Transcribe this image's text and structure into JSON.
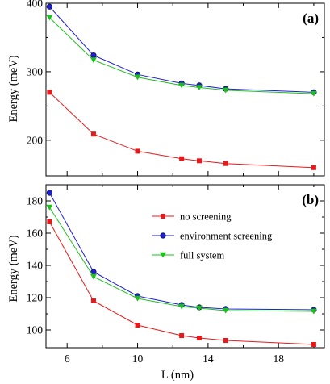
{
  "chart_data": {
    "type": "line",
    "xlabel": "L (nm)",
    "xlim": [
      4.8,
      20.6
    ],
    "xticks": [
      6,
      10,
      14,
      18
    ],
    "xminor": [
      8,
      12,
      16,
      20
    ],
    "x": [
      5,
      7.5,
      10,
      12.5,
      13.5,
      15,
      20
    ],
    "series_styles": [
      {
        "color": "#e41a1c",
        "marker": "square"
      },
      {
        "color": "#1f1fd0",
        "marker": "circle"
      },
      {
        "color": "#1ec01e",
        "marker": "triangle-down"
      }
    ],
    "panels": [
      {
        "label": "(a)",
        "ylabel": "Energy (meV)",
        "ylim": [
          148,
          400
        ],
        "yticks": [
          200,
          300,
          400
        ],
        "yminor": [
          250,
          350
        ],
        "show_legend": false,
        "series": [
          {
            "name": "no screening",
            "values": [
              270,
              209,
              184,
              173,
              170,
              166,
              160
            ]
          },
          {
            "name": "environment screening",
            "values": [
              395,
              324,
              296,
              283,
              280,
              275,
              270
            ]
          },
          {
            "name": "full system",
            "values": [
              379,
              317,
              292,
              280,
              277,
              273,
              268
            ]
          }
        ]
      },
      {
        "label": "(b)",
        "ylabel": "Energy (meV)",
        "ylim": [
          89,
          190
        ],
        "yticks": [
          100,
          120,
          140,
          160,
          180
        ],
        "yminor": [
          110,
          130,
          150,
          170
        ],
        "show_legend": true,
        "series": [
          {
            "name": "no screening",
            "values": [
              167,
              118,
              103,
              96.5,
              95,
              93.5,
              91
            ]
          },
          {
            "name": "environment screening",
            "values": [
              185,
              136,
              121,
              115.5,
              114,
              113,
              112.5
            ]
          },
          {
            "name": "full system",
            "values": [
              176,
              133,
              119.5,
              114.5,
              113.5,
              112,
              111.5
            ]
          }
        ]
      }
    ]
  }
}
